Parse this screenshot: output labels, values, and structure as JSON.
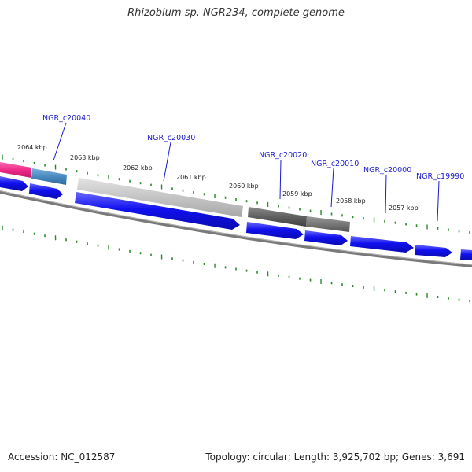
{
  "title": "Rhizobium sp. NGR234, complete genome",
  "accession": "Accession: NC_012587",
  "topology": "Topology: circular; Length: 3,925,702 bp; Genes: 3,691",
  "colors": {
    "tick": "#2a8a2a",
    "forward_gene": "#1010ee",
    "backbone": "#888888",
    "label_line": "#1a1ad0",
    "highlight_pink": "#ee2a8a",
    "highlight_steel": "#4a8ac0",
    "highlight_light_gray": "#c4c4c4",
    "highlight_dark_gray": "#606060",
    "highlight_mid_gray": "#777777"
  },
  "scale_labels": [
    "2064 kbp",
    "2063 kbp",
    "2062 kbp",
    "2061 kbp",
    "2060 kbp",
    "2059 kbp",
    "2058 kbp",
    "2057 kbp"
  ],
  "gene_labels": [
    "NGR_c20040",
    "NGR_c20030",
    "NGR_c20020",
    "NGR_c20010",
    "NGR_c20000",
    "NGR_c19990"
  ],
  "genes": [
    {
      "strand": "+",
      "track": "inner",
      "color": "forward_gene"
    },
    {
      "strand": "+",
      "track": "inner",
      "color": "forward_gene"
    },
    {
      "strand": "+",
      "track": "inner",
      "color": "forward_gene"
    },
    {
      "strand": "+",
      "track": "inner",
      "color": "forward_gene"
    },
    {
      "strand": "+",
      "track": "inner",
      "color": "forward_gene"
    },
    {
      "strand": "+",
      "track": "inner",
      "color": "forward_gene"
    },
    {
      "strand": "+",
      "track": "inner",
      "color": "forward_gene"
    },
    {
      "strand": "+",
      "track": "inner",
      "color": "forward_gene"
    }
  ],
  "features": [
    {
      "color": "highlight_pink"
    },
    {
      "color": "highlight_steel"
    },
    {
      "color": "highlight_light_gray"
    },
    {
      "color": "highlight_dark_gray"
    },
    {
      "color": "highlight_mid_gray"
    }
  ]
}
